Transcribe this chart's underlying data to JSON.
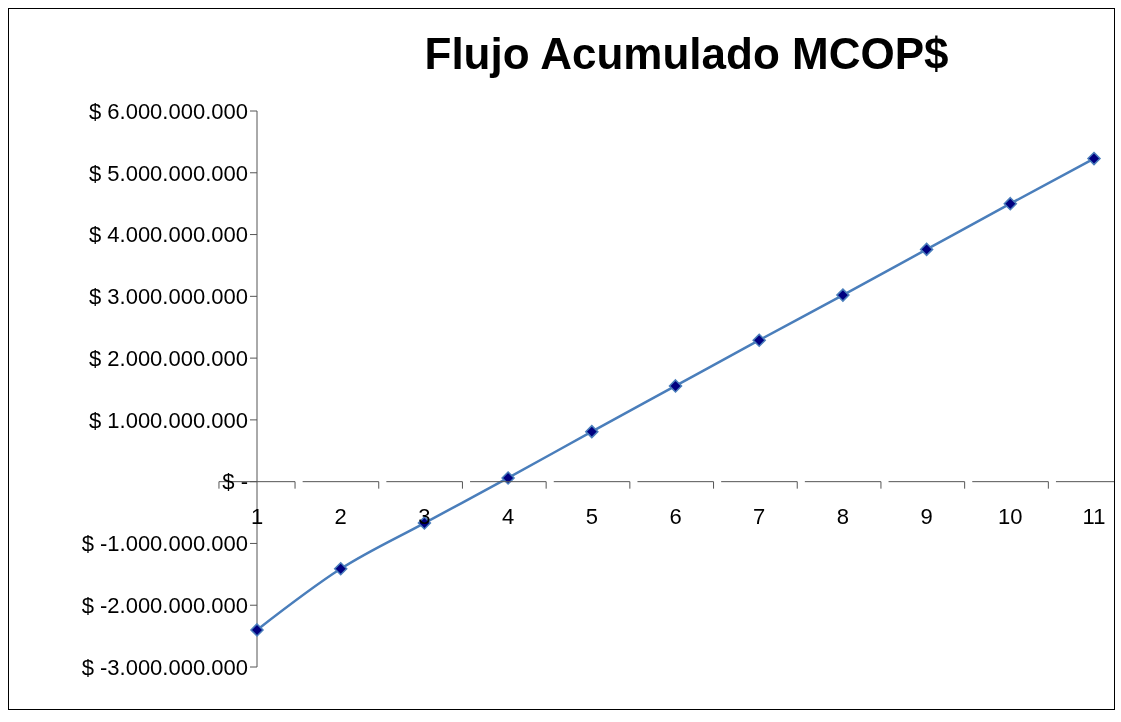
{
  "chart_data": {
    "type": "line",
    "title": "Flujo Acumulado MCOP$",
    "categories": [
      "1",
      "2",
      "3",
      "4",
      "5",
      "6",
      "7",
      "8",
      "9",
      "10",
      "11"
    ],
    "series": [
      {
        "color": "#4a7ebb",
        "values": [
          -2400000000,
          -1410000000,
          -670000000,
          60000000,
          810000000,
          1550000000,
          2290000000,
          3020000000,
          3760000000,
          4500000000,
          5230000000
        ]
      }
    ],
    "ylim": [
      -3000000000,
      6000000000
    ],
    "yticks": [
      {
        "value": -3000000000,
        "label": "$ -3.000.000.000"
      },
      {
        "value": -2000000000,
        "label": "$ -2.000.000.000"
      },
      {
        "value": -1000000000,
        "label": "$ -1.000.000.000"
      },
      {
        "value": 0,
        "label": "$ -"
      },
      {
        "value": 1000000000,
        "label": "$ 1.000.000.000"
      },
      {
        "value": 2000000000,
        "label": "$ 2.000.000.000"
      },
      {
        "value": 3000000000,
        "label": "$ 3.000.000.000"
      },
      {
        "value": 4000000000,
        "label": "$ 4.000.000.000"
      },
      {
        "value": 5000000000,
        "label": "$ 5.000.000.000"
      },
      {
        "value": 6000000000,
        "label": "$ 6.000.000.000"
      }
    ],
    "grid": false,
    "legend": false,
    "marker": "diamond",
    "line_style": "solid"
  }
}
